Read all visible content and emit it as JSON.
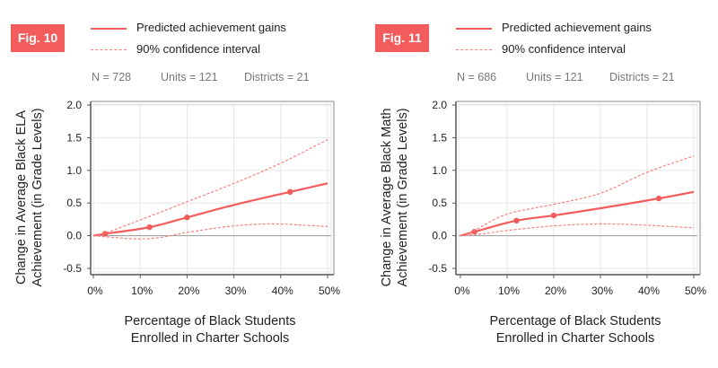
{
  "figures": [
    {
      "badge": "Fig. 10",
      "legend": {
        "solid": "Predicted achievement gains",
        "dashed": "90% confidence interval"
      },
      "stats": {
        "n": "N = 728",
        "units": "Units = 121",
        "districts": "Districts = 21"
      },
      "ylabel_line1": "Change in Average Black ELA",
      "ylabel_line2": "Achievement (in Grade Levels)",
      "xlabel_line1": "Percentage of Black Students",
      "xlabel_line2": "Enrolled in Charter Schools"
    },
    {
      "badge": "Fig. 11",
      "legend": {
        "solid": "Predicted achievement gains",
        "dashed": "90% confidence interval"
      },
      "stats": {
        "n": "N = 686",
        "units": "Units = 121",
        "districts": "Districts = 21"
      },
      "ylabel_line1": "Change in Average Black Math",
      "ylabel_line2": "Achievement (in Grade Levels)",
      "xlabel_line1": "Percentage of Black Students",
      "xlabel_line2": "Enrolled in Charter Schools"
    }
  ],
  "colors": {
    "line": "#f25c5c",
    "ci": "#f5807d",
    "badge": "#f25c5c",
    "grid": "#e6e6e6",
    "zero": "#999999",
    "frame": "#555555"
  },
  "chart_data": [
    {
      "type": "line",
      "title": "Fig. 10",
      "xlabel": "Percentage of Black Students Enrolled in Charter Schools",
      "ylabel": "Change in Average Black ELA Achievement (in Grade Levels)",
      "xlim": [
        0,
        50
      ],
      "ylim": [
        -0.5,
        2.0
      ],
      "xticks": [
        0,
        10,
        20,
        30,
        40,
        50
      ],
      "xtick_labels": [
        "0%",
        "10%",
        "20%",
        "30%",
        "40%",
        "50%"
      ],
      "yticks": [
        2.0,
        1.5,
        1.0,
        0.5,
        0.0,
        -0.5
      ],
      "ytick_labels": [
        "2.0",
        "1.5",
        "1.0",
        "0.5",
        "0.0",
        "-0.5"
      ],
      "grid": true,
      "legend_position": "top",
      "series": [
        {
          "name": "Predicted achievement gains",
          "style": "solid",
          "x": [
            0,
            2.5,
            12,
            20,
            30,
            42,
            50
          ],
          "y": [
            0,
            0.03,
            0.13,
            0.28,
            0.47,
            0.67,
            0.8
          ],
          "markers_x": [
            2.5,
            12,
            20,
            42
          ],
          "markers_y": [
            0.03,
            0.13,
            0.28,
            0.67
          ]
        },
        {
          "name": "90% confidence interval (upper)",
          "style": "dashed",
          "x": [
            0,
            2.5,
            10,
            20,
            30,
            40,
            50
          ],
          "y": [
            0,
            0.04,
            0.24,
            0.52,
            0.8,
            1.11,
            1.47
          ]
        },
        {
          "name": "90% confidence interval (lower)",
          "style": "dashed",
          "x": [
            0,
            5,
            10,
            15,
            20,
            30,
            38,
            45,
            50
          ],
          "y": [
            0,
            -0.03,
            -0.05,
            -0.02,
            0.05,
            0.15,
            0.18,
            0.16,
            0.14
          ]
        }
      ]
    },
    {
      "type": "line",
      "title": "Fig. 11",
      "xlabel": "Percentage of Black Students Enrolled in Charter Schools",
      "ylabel": "Change in Average Black Math Achievement (in Grade Levels)",
      "xlim": [
        0,
        50
      ],
      "ylim": [
        -0.5,
        2.0
      ],
      "xticks": [
        0,
        10,
        20,
        30,
        40,
        50
      ],
      "xtick_labels": [
        "0%",
        "10%",
        "20%",
        "30%",
        "40%",
        "50%"
      ],
      "yticks": [
        2.0,
        1.5,
        1.0,
        0.5,
        0.0,
        -0.5
      ],
      "ytick_labels": [
        "2.0",
        "1.5",
        "1.0",
        "0.5",
        "0.0",
        "-0.5"
      ],
      "grid": true,
      "legend_position": "top",
      "series": [
        {
          "name": "Predicted achievement gains",
          "style": "solid",
          "x": [
            0,
            3,
            12,
            20,
            30,
            42.5,
            50
          ],
          "y": [
            0,
            0.06,
            0.23,
            0.31,
            0.42,
            0.57,
            0.67
          ],
          "markers_x": [
            3,
            12,
            20,
            42.5
          ],
          "markers_y": [
            0.06,
            0.23,
            0.31,
            0.57
          ]
        },
        {
          "name": "90% confidence interval (upper)",
          "style": "dashed",
          "x": [
            0,
            3,
            10,
            20,
            30,
            40,
            50
          ],
          "y": [
            0,
            0.08,
            0.33,
            0.48,
            0.65,
            0.97,
            1.22
          ]
        },
        {
          "name": "90% confidence interval (lower)",
          "style": "dashed",
          "x": [
            0,
            5,
            10,
            20,
            30,
            40,
            50
          ],
          "y": [
            0,
            0.03,
            0.08,
            0.15,
            0.18,
            0.16,
            0.12
          ]
        }
      ]
    }
  ]
}
